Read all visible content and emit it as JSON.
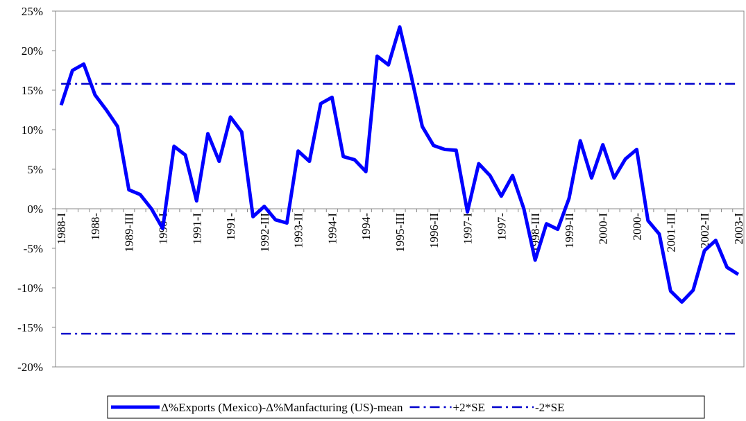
{
  "chart_data": {
    "type": "line",
    "categories": [
      "1988-I",
      null,
      null,
      "1988-",
      null,
      null,
      "1989-III",
      null,
      null,
      "1990-I",
      null,
      null,
      "1991-I",
      null,
      null,
      "1991-",
      null,
      null,
      "1992-III",
      null,
      null,
      "1993-II",
      null,
      null,
      "1994-I",
      null,
      null,
      "1994-",
      null,
      null,
      "1995-III",
      null,
      null,
      "1996-II",
      null,
      null,
      "1997-I",
      null,
      null,
      "1997-",
      null,
      null,
      "1998-III",
      null,
      null,
      "1999-II",
      null,
      null,
      "2000-I",
      null,
      null,
      "2000-",
      null,
      null,
      "2001-III",
      null,
      null,
      "2002-II",
      null,
      null,
      "2003-I"
    ],
    "series": [
      {
        "name": "Δ%Exports (Mexico)-Δ%Manfacturing (US)-mean",
        "color": "#0000ff",
        "style": "solid",
        "values": [
          13.1,
          17.5,
          18.3,
          14.4,
          12.5,
          10.4,
          2.4,
          1.8,
          0,
          -2.5,
          7.9,
          6.8,
          1.0,
          9.5,
          6.0,
          11.6,
          9.7,
          -1.0,
          0.3,
          -1.4,
          -1.8,
          7.3,
          6.0,
          13.3,
          14.1,
          6.6,
          6.2,
          4.7,
          19.3,
          18.2,
          23.0,
          16.9,
          10.4,
          8.0,
          7.5,
          7.4,
          -0.4,
          5.7,
          4.2,
          1.6,
          4.2,
          0,
          -6.5,
          -1.9,
          -2.6,
          1.3,
          8.6,
          3.9,
          8.1,
          3.9,
          6.3,
          7.5,
          -1.5,
          -3.2,
          -10.4,
          -11.8,
          -10.3,
          -5.3,
          -4.0,
          -7.4,
          -8.3
        ]
      },
      {
        "name": "+2*SE",
        "color": "#0000cc",
        "style": "dashdot",
        "values": [
          15.8,
          15.8,
          15.8,
          15.8,
          15.8,
          15.8,
          15.8,
          15.8,
          15.8,
          15.8,
          15.8,
          15.8,
          15.8,
          15.8,
          15.8,
          15.8,
          15.8,
          15.8,
          15.8,
          15.8,
          15.8,
          15.8,
          15.8,
          15.8,
          15.8,
          15.8,
          15.8,
          15.8,
          15.8,
          15.8,
          15.8,
          15.8,
          15.8,
          15.8,
          15.8,
          15.8,
          15.8,
          15.8,
          15.8,
          15.8,
          15.8,
          15.8,
          15.8,
          15.8,
          15.8,
          15.8,
          15.8,
          15.8,
          15.8,
          15.8,
          15.8,
          15.8,
          15.8,
          15.8,
          15.8,
          15.8,
          15.8,
          15.8,
          15.8,
          15.8,
          15.8
        ]
      },
      {
        "name": "-2*SE",
        "color": "#0000cc",
        "style": "dashdot",
        "values": [
          -15.8,
          -15.8,
          -15.8,
          -15.8,
          -15.8,
          -15.8,
          -15.8,
          -15.8,
          -15.8,
          -15.8,
          -15.8,
          -15.8,
          -15.8,
          -15.8,
          -15.8,
          -15.8,
          -15.8,
          -15.8,
          -15.8,
          -15.8,
          -15.8,
          -15.8,
          -15.8,
          -15.8,
          -15.8,
          -15.8,
          -15.8,
          -15.8,
          -15.8,
          -15.8,
          -15.8,
          -15.8,
          -15.8,
          -15.8,
          -15.8,
          -15.8,
          -15.8,
          -15.8,
          -15.8,
          -15.8,
          -15.8,
          -15.8,
          -15.8,
          -15.8,
          -15.8,
          -15.8,
          -15.8,
          -15.8,
          -15.8,
          -15.8,
          -15.8,
          -15.8,
          -15.8,
          -15.8,
          -15.8,
          -15.8,
          -15.8,
          -15.8,
          -15.8,
          -15.8,
          -15.8
        ]
      }
    ],
    "ylim": [
      -20,
      25
    ],
    "yticks": [
      {
        "value": -20,
        "label": "-20%"
      },
      {
        "value": -15,
        "label": "-15%"
      },
      {
        "value": -10,
        "label": "-10%"
      },
      {
        "value": -5,
        "label": "-5%"
      },
      {
        "value": 0,
        "label": "0%"
      },
      {
        "value": 5,
        "label": "5%"
      },
      {
        "value": 10,
        "label": "10%"
      },
      {
        "value": 15,
        "label": "15%"
      },
      {
        "value": 20,
        "label": "20%"
      },
      {
        "value": 25,
        "label": "25%"
      }
    ],
    "grid": false,
    "legend": "bottom"
  }
}
